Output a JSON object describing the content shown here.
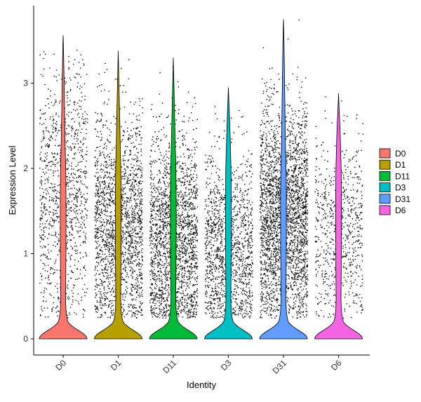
{
  "chart_data": {
    "type": "violin",
    "xlabel": "Identity",
    "ylabel": "Expression Level",
    "ylim": [
      -0.2,
      3.9
    ],
    "yticks": [
      0,
      1,
      2,
      3
    ],
    "categories": [
      "D0",
      "D1",
      "D11",
      "D3",
      "D31",
      "D6"
    ],
    "colors": [
      "#F8766D",
      "#B79F00",
      "#00BA38",
      "#00BFC4",
      "#619CFF",
      "#F564E3"
    ],
    "max_values": [
      3.56,
      3.38,
      3.3,
      2.95,
      3.75,
      2.88
    ],
    "max_width_values": [
      0.0,
      0.0,
      0.0,
      0.0,
      0.0,
      0.0
    ],
    "legend": {
      "position": "right",
      "entries": [
        "D0",
        "D1",
        "D11",
        "D3",
        "D31",
        "D6"
      ]
    },
    "grid": false,
    "jitter_points": true
  }
}
